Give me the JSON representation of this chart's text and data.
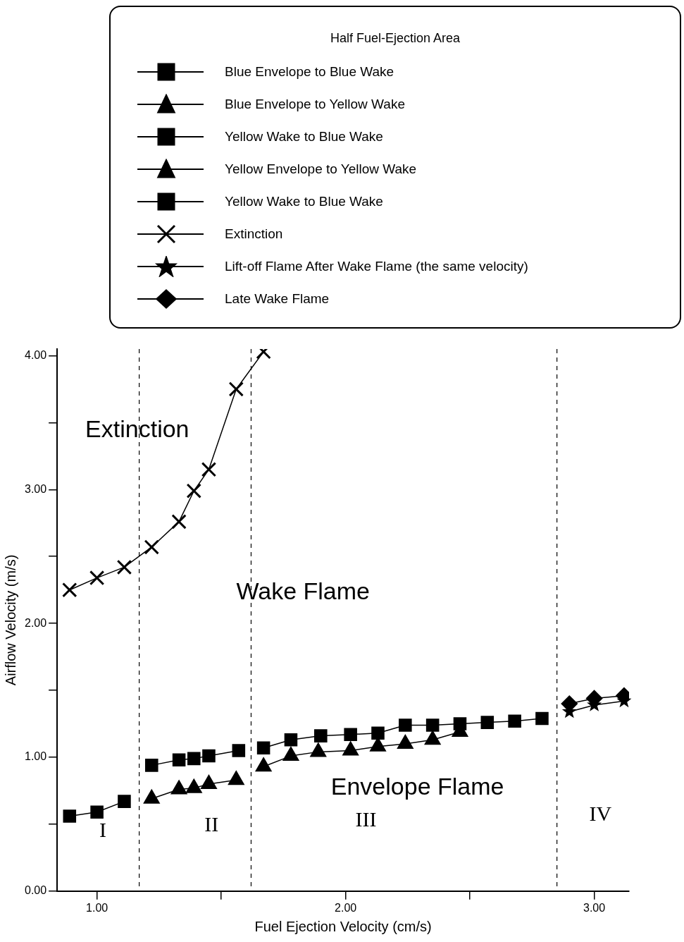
{
  "chart_data": {
    "type": "line",
    "legend_title": "Half Fuel-Ejection Area",
    "xlabel": "Fuel Ejection Velocity (cm/s)",
    "ylabel": "Airflow Velocity (m/s)",
    "xlim": [
      0.84,
      3.14
    ],
    "ylim": [
      0,
      4.05
    ],
    "xticks": [
      {
        "value": 1,
        "label": "1.00"
      },
      {
        "value": 1.5,
        "label": null
      },
      {
        "value": 2,
        "label": "2.00"
      },
      {
        "value": 2.5,
        "label": null
      },
      {
        "value": 3,
        "label": "3.00"
      }
    ],
    "yticks": [
      {
        "value": 0,
        "label": "0.00"
      },
      {
        "value": 0.5,
        "label": null
      },
      {
        "value": 1,
        "label": "1.00"
      },
      {
        "value": 1.5,
        "label": null
      },
      {
        "value": 2,
        "label": "2.00"
      },
      {
        "value": 2.5,
        "label": null
      },
      {
        "value": 3,
        "label": "3.00"
      },
      {
        "value": 3.5,
        "label": null
      },
      {
        "value": 4,
        "label": "4.00"
      }
    ],
    "grid": false,
    "legend": "top",
    "line_style": "solid",
    "series": [
      {
        "name": "Blue Envelope to Blue Wake",
        "color": "#000000",
        "marker": "square",
        "x": [
          0.89,
          1.0,
          1.11
        ],
        "values": [
          0.56,
          0.59,
          0.67
        ]
      },
      {
        "name": "Blue Envelope to Yellow Wake",
        "color": "#000000",
        "marker": "triangle",
        "x": [
          1.22,
          1.33,
          1.39,
          1.45,
          1.56
        ],
        "values": [
          0.69,
          0.76,
          0.77,
          0.8,
          0.83
        ]
      },
      {
        "name": "Yellow Wake to Blue Wake",
        "color": "#000000",
        "marker": "square",
        "x": [
          1.22,
          1.33,
          1.39,
          1.45,
          1.57
        ],
        "values": [
          0.94,
          0.98,
          0.99,
          1.01,
          1.05
        ]
      },
      {
        "name": "Yellow Envelope to Yellow Wake",
        "color": "#000000",
        "marker": "triangle",
        "x": [
          1.67,
          1.78,
          1.89,
          2.02,
          2.13,
          2.24,
          2.35,
          2.46
        ],
        "values": [
          0.93,
          1.01,
          1.04,
          1.05,
          1.08,
          1.1,
          1.13,
          1.19
        ]
      },
      {
        "name": "Yellow Wake to Blue Wake",
        "color": "#000000",
        "marker": "square",
        "x": [
          1.67,
          1.78,
          1.9,
          2.02,
          2.13,
          2.24,
          2.35,
          2.46,
          2.57,
          2.68,
          2.79
        ],
        "values": [
          1.07,
          1.13,
          1.16,
          1.17,
          1.18,
          1.24,
          1.24,
          1.25,
          1.26,
          1.27,
          1.29
        ]
      },
      {
        "name": "Extinction",
        "color": "#000000",
        "marker": "cross",
        "x": [
          0.89,
          1.0,
          1.11,
          1.22,
          1.33,
          1.39,
          1.45,
          1.56,
          1.67
        ],
        "values": [
          2.25,
          2.34,
          2.42,
          2.57,
          2.76,
          2.99,
          3.15,
          3.75,
          4.03
        ]
      },
      {
        "name": "Lift-off Flame After Wake Flame (the same velocity)",
        "color": "#000000",
        "marker": "star",
        "x": [
          2.9,
          3.0,
          3.12
        ],
        "values": [
          1.34,
          1.39,
          1.42
        ]
      },
      {
        "name": "Late Wake Flame",
        "color": "#000000",
        "marker": "diamond",
        "x": [
          2.9,
          3.0,
          3.12
        ],
        "values": [
          1.4,
          1.44,
          1.46
        ]
      }
    ],
    "ref_lines": [
      {
        "axis": "x",
        "value": 1.17,
        "line_style": "dashed"
      },
      {
        "axis": "x",
        "value": 1.62,
        "line_style": "dashed"
      },
      {
        "axis": "x",
        "value": 2.85,
        "line_style": "dashed"
      }
    ],
    "annotations": [
      "Extinction",
      "Wake Flame",
      "Envelope Flame",
      "I",
      "II",
      "III",
      "IV"
    ]
  }
}
